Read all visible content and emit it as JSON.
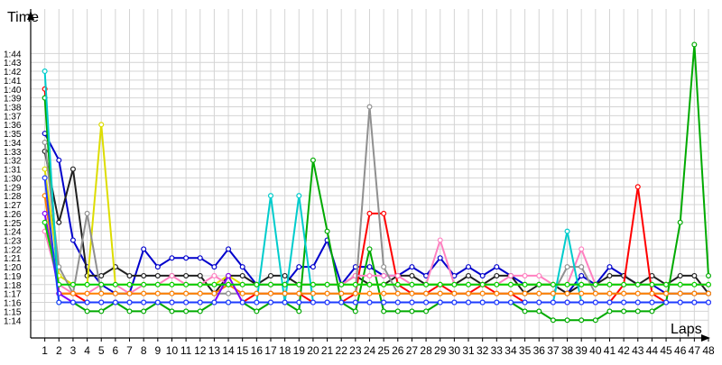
{
  "chart_data": {
    "type": "line",
    "xlabel": "Laps",
    "ylabel": "Time",
    "grid": true,
    "y_tick_labels": [
      "1:14",
      "1:15",
      "1:16",
      "1:17",
      "1:18",
      "1:19",
      "1:20",
      "1:21",
      "1:22",
      "1:23",
      "1:24",
      "1:25",
      "1:26",
      "1:27",
      "1:28",
      "1:29",
      "1:30",
      "1:31",
      "1:32",
      "1:33",
      "1:34",
      "1:35",
      "1:36",
      "1:37",
      "1:38",
      "1:39",
      "1:40",
      "1:41",
      "1:42",
      "1:43",
      "1:44"
    ],
    "y_tick_seconds": [
      74,
      75,
      76,
      77,
      78,
      79,
      80,
      81,
      82,
      83,
      84,
      85,
      86,
      87,
      88,
      89,
      90,
      91,
      92,
      93,
      94,
      95,
      96,
      97,
      98,
      99,
      100,
      101,
      102,
      103,
      104
    ],
    "x_tick_labels": [
      "1",
      "2",
      "3",
      "4",
      "5",
      "6",
      "7",
      "8",
      "9",
      "10",
      "11",
      "12",
      "13",
      "14",
      "15",
      "16",
      "17",
      "18",
      "19",
      "20",
      "21",
      "22",
      "23",
      "24",
      "25",
      "26",
      "27",
      "28",
      "29",
      "30",
      "31",
      "32",
      "33",
      "34",
      "35",
      "36",
      "37",
      "38",
      "39",
      "40",
      "41",
      "42",
      "43",
      "44",
      "45",
      "46",
      "47",
      "48"
    ],
    "xlim": [
      0,
      48
    ],
    "ylim_seconds": [
      72,
      109
    ],
    "series": [
      {
        "color": "#0000cc",
        "x": [
          1,
          2,
          3,
          4,
          5,
          6,
          7,
          8,
          9,
          10,
          11,
          12,
          13,
          14,
          15,
          16,
          17,
          18,
          19,
          20,
          21,
          22,
          23,
          24,
          25,
          26,
          27,
          28,
          29,
          30,
          31,
          32,
          33,
          34,
          35,
          36,
          37,
          38,
          39,
          40,
          41,
          42,
          43,
          44,
          45,
          46,
          47,
          48
        ],
        "y": [
          95,
          92,
          83,
          80,
          78,
          77,
          77,
          82,
          80,
          81,
          81,
          81,
          80,
          82,
          80,
          78,
          78,
          78,
          80,
          80,
          83,
          78,
          80,
          80,
          79,
          79,
          80,
          79,
          81,
          79,
          80,
          79,
          80,
          79,
          78,
          78,
          78,
          77,
          79,
          78,
          80,
          79,
          78,
          78,
          77,
          77,
          77,
          77
        ]
      },
      {
        "color": "#202020",
        "x": [
          1,
          2,
          3,
          4,
          5,
          6,
          7,
          8,
          9,
          10,
          11,
          12,
          13,
          14,
          15,
          16,
          17,
          18,
          19,
          20,
          21,
          22,
          23,
          24,
          25,
          26,
          27,
          28,
          29,
          30,
          31,
          32,
          33,
          34,
          35,
          36,
          37,
          38,
          39,
          40,
          41,
          42,
          43,
          44,
          45,
          46,
          47,
          48
        ],
        "y": [
          93,
          85,
          91,
          79,
          79,
          80,
          79,
          79,
          79,
          79,
          79,
          79,
          77,
          79,
          79,
          78,
          79,
          79,
          78,
          78,
          78,
          78,
          79,
          78,
          78,
          79,
          79,
          78,
          78,
          78,
          79,
          78,
          79,
          79,
          77,
          78,
          78,
          77,
          78,
          78,
          79,
          79,
          78,
          79,
          78,
          79,
          79,
          77
        ]
      },
      {
        "color": "#ff0000",
        "x": [
          1,
          2,
          3,
          4,
          5,
          6,
          7,
          8,
          9,
          10,
          11,
          12,
          13,
          14,
          15,
          16,
          17,
          18,
          19,
          20,
          21,
          22,
          23,
          24,
          25,
          26,
          27,
          28,
          29,
          30,
          31,
          32,
          33,
          34,
          35,
          36,
          37,
          38,
          39,
          40,
          41,
          42,
          43,
          44,
          45,
          46,
          47,
          48
        ],
        "y": [
          100,
          77,
          77,
          76,
          76,
          76,
          76,
          76,
          76,
          76,
          76,
          76,
          76,
          76,
          76,
          77,
          77,
          77,
          77,
          76,
          76,
          76,
          77,
          86,
          86,
          78,
          77,
          77,
          78,
          77,
          77,
          78,
          77,
          77,
          76,
          76,
          76,
          76,
          76,
          76,
          76,
          78,
          89,
          77,
          76,
          76,
          76,
          76
        ]
      },
      {
        "color": "#00aa00",
        "x": [
          1,
          2,
          3,
          4,
          5,
          6,
          7,
          8,
          9,
          10,
          11,
          12,
          13,
          14,
          15,
          16,
          17,
          18,
          19,
          20,
          21,
          22,
          23,
          24,
          25,
          26,
          27,
          28,
          29,
          30,
          31,
          32,
          33,
          34,
          35,
          36,
          37,
          38,
          39,
          40,
          41,
          42,
          43,
          44,
          45,
          46,
          47,
          48
        ],
        "y": [
          99,
          76,
          76,
          75,
          75,
          76,
          75,
          75,
          76,
          75,
          75,
          75,
          76,
          76,
          76,
          75,
          76,
          76,
          75,
          92,
          84,
          76,
          75,
          82,
          75,
          75,
          75,
          75,
          76,
          76,
          76,
          76,
          76,
          76,
          75,
          75,
          74,
          74,
          74,
          74,
          75,
          75,
          75,
          75,
          76,
          85,
          105,
          79
        ]
      },
      {
        "color": "#dddd00",
        "x": [
          1,
          2,
          3,
          4,
          5,
          6,
          7,
          8,
          9,
          10,
          11,
          12,
          13,
          14,
          15,
          16,
          17,
          18,
          19,
          20,
          21,
          22,
          23,
          24,
          25,
          26,
          27,
          28,
          29,
          30,
          31,
          32,
          33,
          34,
          35,
          36,
          37,
          38,
          39,
          40,
          41,
          42,
          43,
          44,
          45,
          46,
          47,
          48
        ],
        "y": [
          91,
          79,
          78,
          78,
          96,
          78,
          78,
          78,
          78,
          78,
          78,
          78,
          78,
          79,
          78,
          78,
          78,
          78,
          78,
          78,
          78,
          78,
          78,
          78,
          78,
          78,
          78,
          78,
          78,
          78,
          78,
          78,
          78,
          78,
          78,
          78,
          78,
          78,
          78,
          78,
          78,
          78,
          78,
          78,
          78,
          78,
          78,
          78
        ]
      },
      {
        "color": "#ff80c0",
        "x": [
          1,
          2,
          3,
          4,
          5,
          6,
          7,
          8,
          9,
          10,
          11,
          12,
          13,
          14,
          15,
          16,
          17,
          18,
          19,
          20,
          21,
          22,
          23,
          24,
          25,
          26,
          27,
          28,
          29,
          30,
          31,
          32,
          33,
          34,
          35,
          36,
          37,
          38,
          39,
          40,
          41,
          42,
          43,
          44,
          45,
          46,
          47,
          48
        ],
        "y": [
          84,
          78,
          77,
          77,
          78,
          78,
          77,
          78,
          78,
          79,
          78,
          78,
          79,
          78,
          78,
          78,
          78,
          78,
          78,
          78,
          78,
          78,
          79,
          79,
          79,
          79,
          78,
          78,
          83,
          78,
          78,
          78,
          78,
          79,
          79,
          79,
          78,
          78,
          82,
          78,
          78,
          78,
          78,
          78,
          78,
          78,
          78,
          78
        ]
      },
      {
        "color": "#909090",
        "x": [
          1,
          2,
          3,
          4,
          5,
          6,
          7,
          8,
          9,
          10,
          11,
          12,
          13,
          14,
          15,
          16,
          17,
          18,
          19,
          20,
          21,
          22,
          23,
          24,
          25,
          26,
          27,
          28,
          29,
          30,
          31,
          32,
          33,
          34,
          35,
          36,
          37,
          38,
          39,
          40,
          41,
          42,
          43,
          44,
          45,
          46,
          47,
          48
        ],
        "y": [
          94,
          80,
          77,
          86,
          77,
          77,
          77,
          77,
          77,
          77,
          77,
          77,
          77,
          77,
          77,
          77,
          77,
          77,
          77,
          77,
          77,
          77,
          77,
          98,
          80,
          77,
          77,
          77,
          77,
          77,
          77,
          77,
          77,
          77,
          77,
          77,
          77,
          80,
          80,
          77,
          77,
          77,
          77,
          77,
          77,
          77,
          77,
          77
        ]
      },
      {
        "color": "#00cccc",
        "x": [
          1,
          2,
          3,
          4,
          5,
          6,
          7,
          8,
          9,
          10,
          11,
          12,
          13,
          14,
          15,
          16,
          17,
          18,
          19,
          20,
          21,
          22,
          23,
          24,
          25,
          26,
          27,
          28,
          29,
          30,
          31,
          32,
          33,
          34,
          35,
          36,
          37,
          38,
          39,
          40,
          41,
          42,
          43,
          44,
          45,
          46,
          47,
          48
        ],
        "y": [
          102,
          76,
          76,
          76,
          76,
          76,
          76,
          76,
          76,
          76,
          76,
          76,
          76,
          76,
          76,
          76,
          88,
          76,
          88,
          76,
          76,
          76,
          76,
          76,
          76,
          76,
          76,
          76,
          76,
          76,
          76,
          76,
          76,
          76,
          76,
          76,
          76,
          84,
          76,
          76,
          76,
          76,
          76,
          76,
          76,
          76,
          76,
          76
        ]
      },
      {
        "color": "#ff8000",
        "x": [
          1,
          2,
          3,
          4,
          5,
          6,
          7,
          8,
          9,
          10,
          11,
          12,
          13,
          14,
          15,
          16,
          17,
          18,
          19,
          20,
          21,
          22,
          23,
          24,
          25,
          26,
          27,
          28,
          29,
          30,
          31,
          32,
          33,
          34,
          35,
          36,
          37,
          38,
          39,
          40,
          41,
          42,
          43,
          44,
          45,
          46,
          47,
          48
        ],
        "y": [
          88,
          77,
          77,
          77,
          77,
          77,
          77,
          77,
          77,
          77,
          77,
          77,
          77,
          78,
          77,
          77,
          77,
          77,
          77,
          77,
          77,
          77,
          77,
          77,
          77,
          77,
          77,
          77,
          77,
          77,
          77,
          77,
          77,
          77,
          77,
          77,
          77,
          77,
          77,
          77,
          77,
          77,
          77,
          77,
          77,
          77,
          77,
          77
        ]
      },
      {
        "color": "#8000ff",
        "x": [
          1,
          2,
          3,
          4,
          5,
          6,
          7,
          8,
          9,
          10,
          11,
          12,
          13,
          14,
          15,
          16,
          17,
          18,
          19,
          20,
          21,
          22,
          23,
          24,
          25,
          26,
          27,
          28,
          29,
          30,
          31,
          32,
          33,
          34,
          35,
          36,
          37,
          38,
          39,
          40,
          41,
          42,
          43,
          44,
          45,
          46,
          47,
          48
        ],
        "y": [
          86,
          77,
          76,
          76,
          76,
          76,
          76,
          76,
          76,
          76,
          76,
          76,
          76,
          79,
          76,
          76,
          76,
          76,
          76,
          76,
          76,
          76,
          76,
          76,
          76,
          76,
          76,
          76,
          76,
          76,
          76,
          76,
          76,
          76,
          76,
          76,
          76,
          76,
          76,
          76,
          76,
          76,
          76,
          76,
          76,
          76,
          76,
          76
        ]
      },
      {
        "color": "#00d000",
        "x": [
          1,
          2,
          3,
          4,
          5,
          6,
          7,
          8,
          9,
          10,
          11,
          12,
          13,
          14,
          15,
          16,
          17,
          18,
          19,
          20,
          21,
          22,
          23,
          24,
          25,
          26,
          27,
          28,
          29,
          30,
          31,
          32,
          33,
          34,
          35,
          36,
          37,
          38,
          39,
          40,
          41,
          42,
          43,
          44,
          45,
          46,
          47,
          48
        ],
        "y": [
          85,
          78,
          78,
          78,
          78,
          78,
          78,
          78,
          78,
          78,
          78,
          78,
          78,
          78,
          78,
          78,
          78,
          78,
          78,
          78,
          78,
          78,
          78,
          78,
          78,
          78,
          78,
          78,
          78,
          78,
          78,
          78,
          78,
          78,
          78,
          78,
          78,
          78,
          78,
          78,
          78,
          78,
          78,
          78,
          78,
          78,
          78,
          78
        ]
      },
      {
        "color": "#1e3cff",
        "x": [
          1,
          2,
          3,
          4,
          5,
          6,
          7,
          8,
          9,
          10,
          11,
          12,
          13,
          14,
          15,
          16,
          17,
          18,
          19,
          20,
          21,
          22,
          23,
          24,
          25,
          26,
          27,
          28,
          29,
          30,
          31,
          32,
          33,
          34,
          35,
          36,
          37,
          38,
          39,
          40,
          41,
          42,
          43,
          44,
          45,
          46,
          47,
          48
        ],
        "y": [
          90,
          76,
          76,
          76,
          76,
          76,
          76,
          76,
          76,
          76,
          76,
          76,
          76,
          76,
          76,
          76,
          76,
          76,
          76,
          76,
          76,
          76,
          76,
          76,
          76,
          76,
          76,
          76,
          76,
          76,
          76,
          76,
          76,
          76,
          76,
          76,
          76,
          76,
          76,
          76,
          76,
          76,
          76,
          76,
          76,
          76,
          76,
          76
        ]
      }
    ]
  }
}
